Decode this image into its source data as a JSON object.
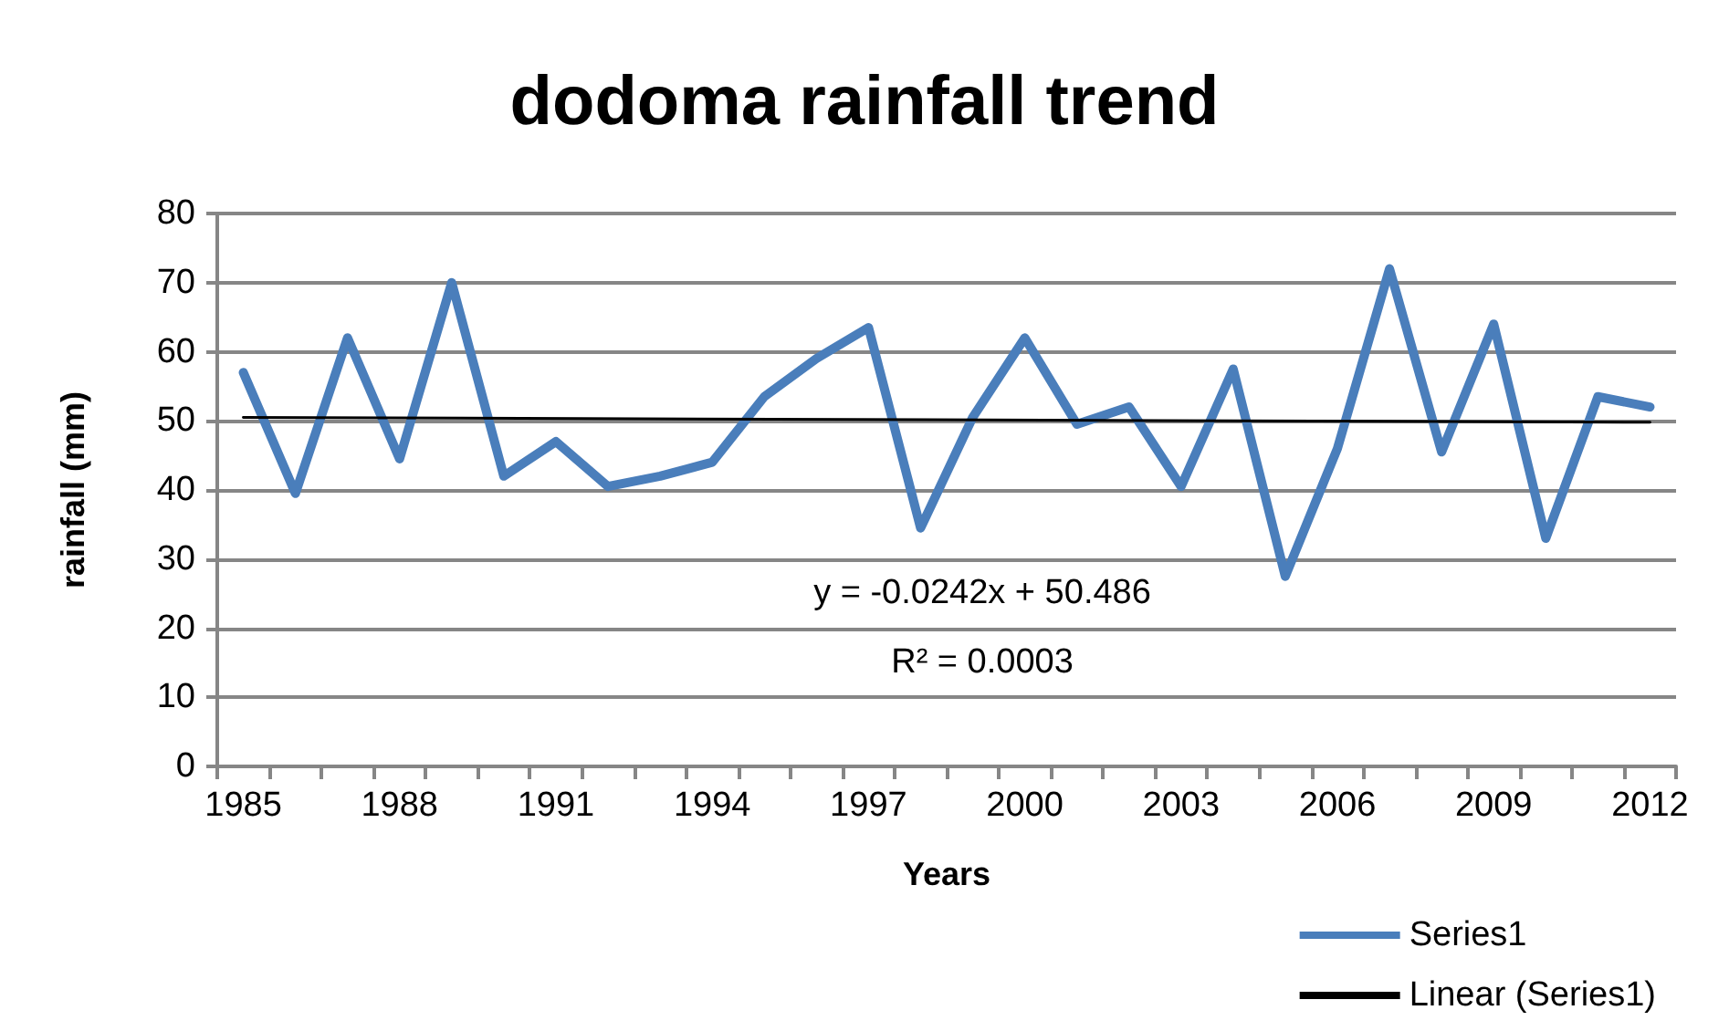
{
  "chart_data": {
    "type": "line",
    "title": "dodoma rainfall trend",
    "xlabel": "Years",
    "ylabel": "rainfall (mm)",
    "categories": [
      "1985",
      null,
      null,
      "1988",
      null,
      null,
      "1991",
      null,
      null,
      "1994",
      null,
      null,
      "1997",
      null,
      null,
      "2000",
      null,
      null,
      "2003",
      null,
      null,
      "2006",
      null,
      null,
      "2009",
      null,
      null,
      "2012"
    ],
    "series": [
      {
        "name": "Series1",
        "color": "#4a7ebb",
        "values": [
          57,
          39.5,
          62,
          44.5,
          70,
          42,
          47,
          40.5,
          42,
          44,
          53.5,
          59,
          63.5,
          34.5,
          50.5,
          62,
          49.5,
          52,
          40.5,
          57.5,
          27.5,
          46,
          72,
          45.5,
          64,
          33,
          53.5,
          52
        ]
      },
      {
        "name": "Linear (Series1)",
        "color": "#000000",
        "values": [
          50.5,
          null,
          null,
          null,
          null,
          null,
          null,
          null,
          null,
          null,
          null,
          null,
          null,
          null,
          null,
          null,
          null,
          null,
          null,
          null,
          null,
          null,
          null,
          null,
          null,
          null,
          null,
          49.8
        ]
      }
    ],
    "ylim": [
      0,
      80
    ],
    "yticks": [
      0,
      10,
      20,
      30,
      40,
      50,
      60,
      70,
      80
    ],
    "annotations": [
      "y = -0.0242x + 50.486",
      "R² = 0.0003"
    ],
    "grid": "y",
    "legend": "bottom right",
    "marker": "none",
    "line_style": "solid"
  }
}
